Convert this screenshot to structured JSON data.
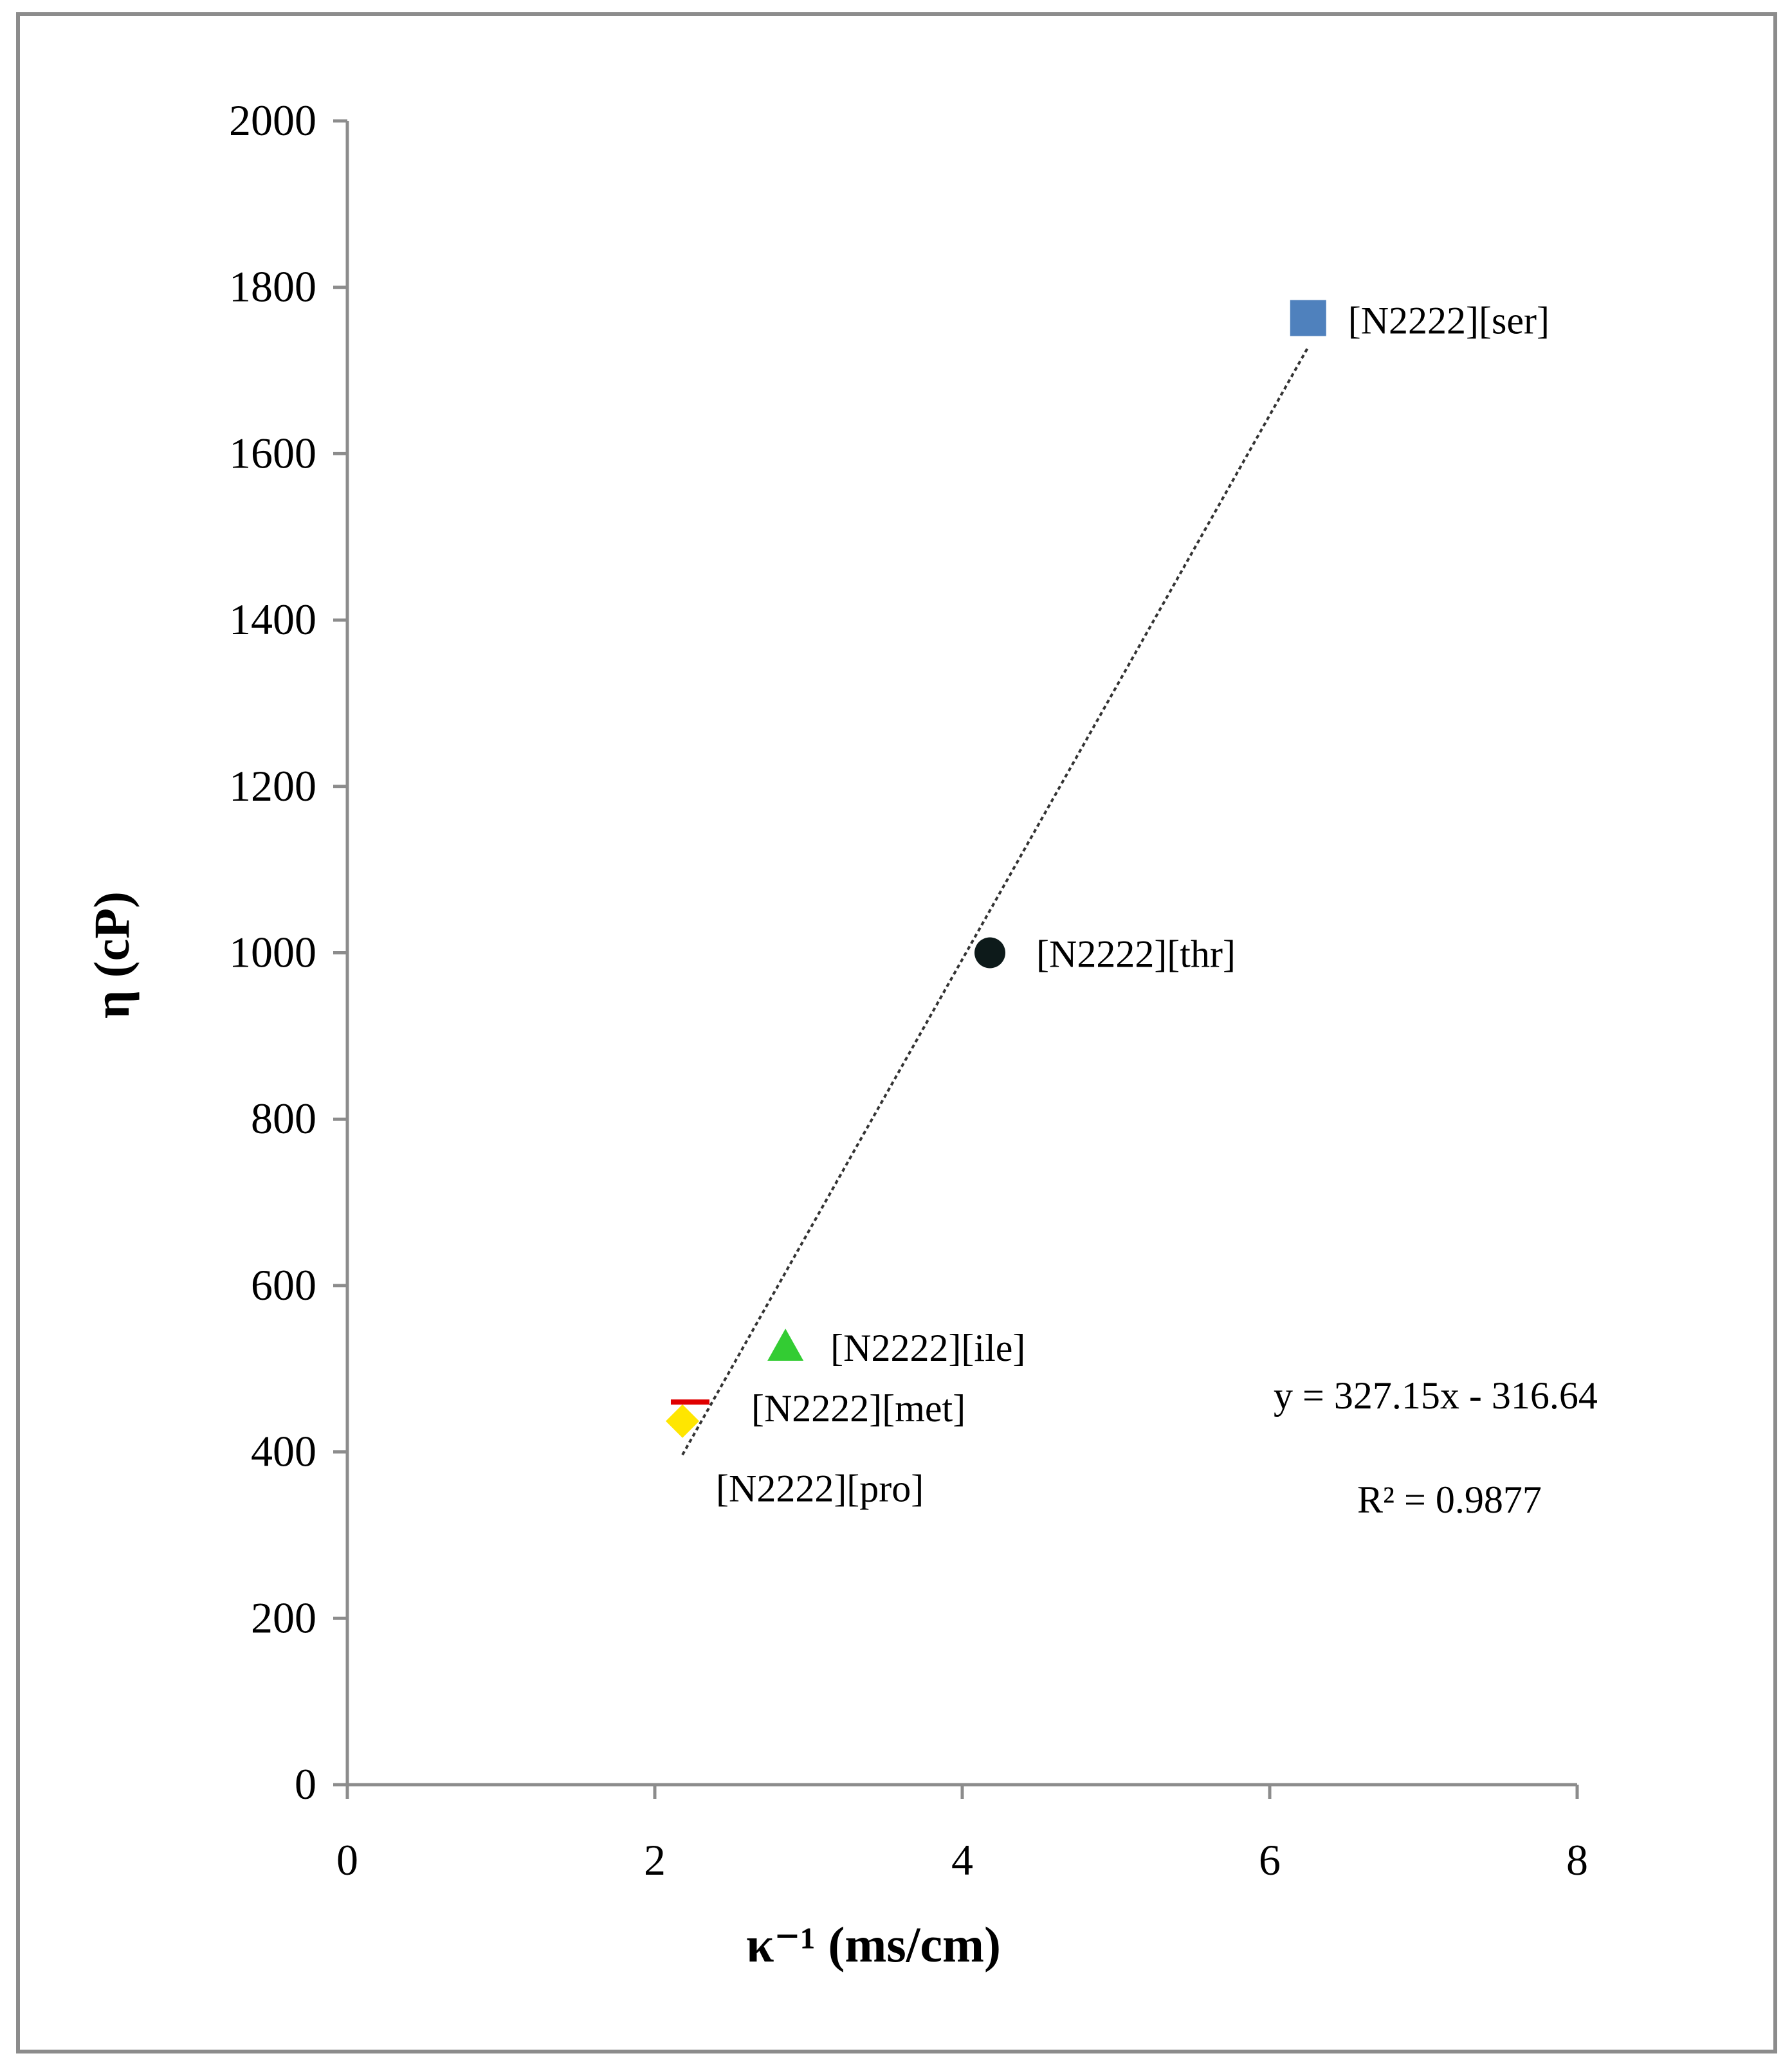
{
  "chart_data": {
    "type": "scatter",
    "title": "",
    "xlabel": "κ⁻¹ (ms/cm)",
    "ylabel": "η (cP)",
    "xlim": [
      0,
      8
    ],
    "ylim": [
      0,
      2000
    ],
    "x_ticks": [
      0,
      2,
      4,
      6,
      8
    ],
    "y_ticks": [
      0,
      200,
      400,
      600,
      800,
      1000,
      1200,
      1400,
      1600,
      1800,
      2000
    ],
    "x_tick_labels": [
      "0",
      "2",
      "4",
      "6",
      "8"
    ],
    "y_tick_labels": [
      "0",
      "200",
      "400",
      "600",
      "800",
      "1000",
      "1200",
      "1400",
      "1600",
      "1800",
      "2000"
    ],
    "grid": false,
    "legend": "none",
    "points": [
      {
        "label": "[N2222][ser]",
        "x": 6.25,
        "y": 1763,
        "marker": "square",
        "color": "#4f81bd"
      },
      {
        "label": "[N2222][thr]",
        "x": 4.18,
        "y": 1000,
        "marker": "circle",
        "color": "#0d1a1a"
      },
      {
        "label": "[N2222][ile]",
        "x": 2.85,
        "y": 525,
        "marker": "triangle",
        "color": "#33cc33"
      },
      {
        "label": "[N2222][met]",
        "x": 2.23,
        "y": 460,
        "marker": "dash",
        "color": "#e00000"
      },
      {
        "label": "[N2222][pro]",
        "x": 2.18,
        "y": 437,
        "marker": "diamond",
        "color": "#ffe600"
      }
    ],
    "trendline": {
      "slope": 327.15,
      "intercept": -316.64,
      "x_range": [
        2.18,
        6.25
      ],
      "style": "dotted",
      "color": "#333333",
      "equation": "y = 327.15x - 316.64",
      "r_squared": "R² = 0.9877"
    }
  }
}
